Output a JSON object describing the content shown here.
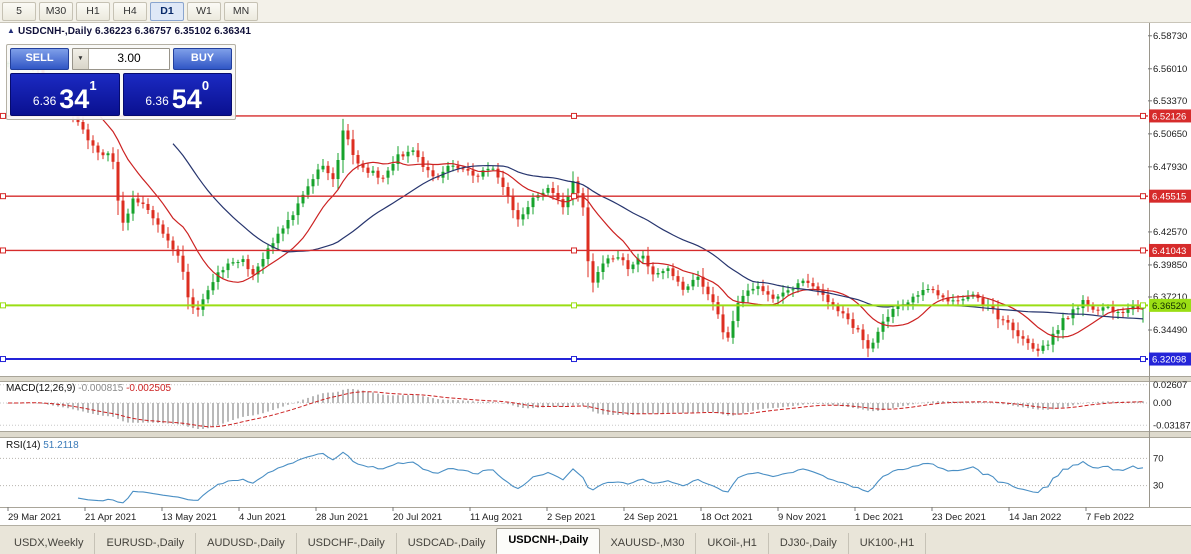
{
  "toolbar": {
    "timeframes": [
      {
        "label": "5",
        "active": false
      },
      {
        "label": "M30",
        "active": false
      },
      {
        "label": "H1",
        "active": false
      },
      {
        "label": "H4",
        "active": false
      },
      {
        "label": "D1",
        "active": true
      },
      {
        "label": "W1",
        "active": false
      },
      {
        "label": "MN",
        "active": false
      }
    ]
  },
  "chart_header": {
    "symbol": "USDCNH-,Daily",
    "ohlc": "6.36223 6.36757 6.35102 6.36341"
  },
  "trade_panel": {
    "sell_label": "SELL",
    "buy_label": "BUY",
    "volume": "3.00",
    "sell_price": {
      "small": "6.36",
      "big": "34",
      "sup": "1"
    },
    "buy_price": {
      "small": "6.36",
      "big": "54",
      "sup": "0"
    }
  },
  "price_axis": {
    "labels": [
      "6.58730",
      "6.56010",
      "6.53370",
      "6.50650",
      "6.47930",
      "6.42570",
      "6.39850",
      "6.37210",
      "6.34490"
    ]
  },
  "chart_data": {
    "type": "candlestick",
    "symbol": "USDCNH",
    "period": "Daily",
    "current_ohlc": {
      "open": 6.36223,
      "high": 6.36757,
      "low": 6.35102,
      "close": 6.36341
    },
    "y_range": [
      6.307,
      6.597
    ],
    "x_labels": [
      "29 Mar 2021",
      "21 Apr 2021",
      "13 May 2021",
      "4 Jun 2021",
      "28 Jun 2021",
      "20 Jul 2021",
      "11 Aug 2021",
      "2 Sep 2021",
      "24 Sep 2021",
      "18 Oct 2021",
      "9 Nov 2021",
      "1 Dec 2021",
      "23 Dec 2021",
      "14 Jan 2022",
      "7 Feb 2022"
    ],
    "horizontal_lines": [
      {
        "price": 6.52126,
        "color": "#d62b2b",
        "badge_text": "6.52126",
        "badge_text_color": "#ffffff"
      },
      {
        "price": 6.45515,
        "color": "#d62b2b",
        "badge_text": "6.45515",
        "badge_text_color": "#ffffff"
      },
      {
        "price": 6.41043,
        "color": "#d62b2b",
        "badge_text": "6.41043",
        "badge_text_color": "#ffffff"
      },
      {
        "price": 6.3652,
        "color": "#9ade14",
        "badge_text": "6.36520",
        "badge_text_color": "#102800"
      },
      {
        "price": 6.32098,
        "color": "#2424d8",
        "badge_text": "6.32098",
        "badge_text_color": "#ffffff"
      }
    ],
    "candle_count": 228,
    "up_color": "#17a32c",
    "down_color": "#dd2e20",
    "moving_averages": [
      {
        "period": 12,
        "color": "#cc2222"
      },
      {
        "period": 34,
        "color": "#27356e"
      }
    ],
    "price_path_anchors": [
      [
        0.0,
        6.563
      ],
      [
        0.012,
        6.572
      ],
      [
        0.028,
        6.556
      ],
      [
        0.048,
        6.536
      ],
      [
        0.065,
        6.51
      ],
      [
        0.078,
        6.494
      ],
      [
        0.092,
        6.487
      ],
      [
        0.1,
        6.428
      ],
      [
        0.11,
        6.452
      ],
      [
        0.122,
        6.447
      ],
      [
        0.134,
        6.428
      ],
      [
        0.145,
        6.411
      ],
      [
        0.152,
        6.403
      ],
      [
        0.158,
        6.372
      ],
      [
        0.165,
        6.359
      ],
      [
        0.175,
        6.376
      ],
      [
        0.19,
        6.397
      ],
      [
        0.205,
        6.404
      ],
      [
        0.216,
        6.391
      ],
      [
        0.23,
        6.413
      ],
      [
        0.25,
        6.44
      ],
      [
        0.268,
        6.468
      ],
      [
        0.278,
        6.481
      ],
      [
        0.288,
        6.467
      ],
      [
        0.296,
        6.516
      ],
      [
        0.304,
        6.487
      ],
      [
        0.316,
        6.477
      ],
      [
        0.33,
        6.471
      ],
      [
        0.343,
        6.487
      ],
      [
        0.356,
        6.494
      ],
      [
        0.366,
        6.477
      ],
      [
        0.378,
        6.47
      ],
      [
        0.392,
        6.482
      ],
      [
        0.41,
        6.471
      ],
      [
        0.425,
        6.481
      ],
      [
        0.44,
        6.459
      ],
      [
        0.449,
        6.433
      ],
      [
        0.462,
        6.452
      ],
      [
        0.477,
        6.464
      ],
      [
        0.489,
        6.446
      ],
      [
        0.498,
        6.466
      ],
      [
        0.506,
        6.454
      ],
      [
        0.513,
        6.381
      ],
      [
        0.522,
        6.396
      ],
      [
        0.535,
        6.407
      ],
      [
        0.546,
        6.397
      ],
      [
        0.558,
        6.406
      ],
      [
        0.57,
        6.389
      ],
      [
        0.582,
        6.397
      ],
      [
        0.594,
        6.378
      ],
      [
        0.608,
        6.387
      ],
      [
        0.622,
        6.367
      ],
      [
        0.633,
        6.337
      ],
      [
        0.645,
        6.372
      ],
      [
        0.66,
        6.379
      ],
      [
        0.675,
        6.371
      ],
      [
        0.69,
        6.377
      ],
      [
        0.702,
        6.385
      ],
      [
        0.715,
        6.374
      ],
      [
        0.728,
        6.365
      ],
      [
        0.742,
        6.352
      ],
      [
        0.752,
        6.339
      ],
      [
        0.758,
        6.329
      ],
      [
        0.766,
        6.343
      ],
      [
        0.778,
        6.359
      ],
      [
        0.79,
        6.368
      ],
      [
        0.802,
        6.374
      ],
      [
        0.812,
        6.379
      ],
      [
        0.824,
        6.371
      ],
      [
        0.838,
        6.367
      ],
      [
        0.852,
        6.373
      ],
      [
        0.864,
        6.363
      ],
      [
        0.876,
        6.353
      ],
      [
        0.888,
        6.344
      ],
      [
        0.898,
        6.334
      ],
      [
        0.908,
        6.325
      ],
      [
        0.918,
        6.337
      ],
      [
        0.928,
        6.351
      ],
      [
        0.938,
        6.361
      ],
      [
        0.947,
        6.369
      ],
      [
        0.957,
        6.358
      ],
      [
        0.968,
        6.365
      ],
      [
        0.98,
        6.358
      ],
      [
        0.99,
        6.363
      ],
      [
        1.0,
        6.363
      ]
    ],
    "indicators": {
      "macd": {
        "name": "MACD(12,26,9)",
        "value_main": "-0.000815",
        "value_signal": "-0.002505",
        "axis_labels": [
          "0.02607",
          "0.00",
          "-0.031872"
        ],
        "axis_values": [
          0.02607,
          0,
          -0.031872
        ],
        "histogram_color": "#b9b9b9",
        "signal_color": "#cc2222"
      },
      "rsi": {
        "name": "RSI(14)",
        "value": "51.2118",
        "levels": [
          70,
          30
        ],
        "line_color": "#4a8fc4"
      }
    }
  },
  "tabs": [
    {
      "label": "USDX,Weekly",
      "active": false
    },
    {
      "label": "EURUSD-,Daily",
      "active": false
    },
    {
      "label": "AUDUSD-,Daily",
      "active": false
    },
    {
      "label": "USDCHF-,Daily",
      "active": false
    },
    {
      "label": "USDCAD-,Daily",
      "active": false
    },
    {
      "label": "USDCNH-,Daily",
      "active": true
    },
    {
      "label": "XAUUSD-,M30",
      "active": false
    },
    {
      "label": "UKOil-,H1",
      "active": false
    },
    {
      "label": "DJ30-,Daily",
      "active": false
    },
    {
      "label": "UK100-,H1",
      "active": false
    }
  ]
}
